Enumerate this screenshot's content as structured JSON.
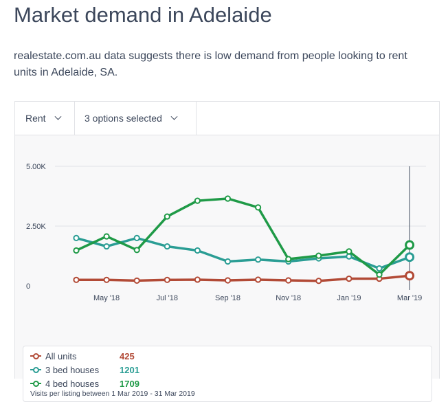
{
  "page": {
    "title": "Market demand in Adelaide",
    "description": "realestate.com.au data suggests there is low demand from people looking to rent units in Adelaide, SA."
  },
  "controls": {
    "type_label": "Rent",
    "options_label": "3 options selected"
  },
  "colors": {
    "all_units": "#b24a36",
    "three_bed": "#2a9d94",
    "four_bed": "#1f9a47",
    "grid": "#e1e2e6",
    "text": "#3c475b"
  },
  "legend": {
    "items": [
      {
        "name": "All units",
        "value": "425"
      },
      {
        "name": "3 bed houses",
        "value": "1201"
      },
      {
        "name": "4 bed houses",
        "value": "1709"
      }
    ],
    "note": "Visits per listing between 1 Mar 2019 - 31 Mar 2019"
  },
  "chart_data": {
    "type": "line",
    "x": [
      "Apr '18",
      "May '18",
      "Jun '18",
      "Jul '18",
      "Aug '18",
      "Sep '18",
      "Oct '18",
      "Nov '18",
      "Dec '18",
      "Jan '19",
      "Feb '19",
      "Mar '19"
    ],
    "xticks": [
      "May '18",
      "Jul '18",
      "Sep '18",
      "Nov '18",
      "Jan '19",
      "Mar '19"
    ],
    "yticks": [
      {
        "value": 0,
        "label": "0"
      },
      {
        "value": 2500,
        "label": "2.50K"
      },
      {
        "value": 5000,
        "label": "5.00K"
      }
    ],
    "ylim": [
      0,
      5000
    ],
    "grid": true,
    "highlight_index": 11,
    "series": [
      {
        "name": "All units",
        "color": "#b24a36",
        "values": [
          250,
          250,
          220,
          250,
          260,
          230,
          260,
          230,
          210,
          300,
          300,
          425
        ]
      },
      {
        "name": "3 bed houses",
        "color": "#2a9d94",
        "values": [
          2000,
          1650,
          2000,
          1650,
          1480,
          1020,
          1100,
          1020,
          1150,
          1230,
          730,
          1201
        ]
      },
      {
        "name": "4 bed houses",
        "color": "#1f9a47",
        "values": [
          1480,
          2070,
          1500,
          2900,
          3560,
          3650,
          3280,
          1120,
          1260,
          1440,
          470,
          1709
        ]
      }
    ]
  }
}
